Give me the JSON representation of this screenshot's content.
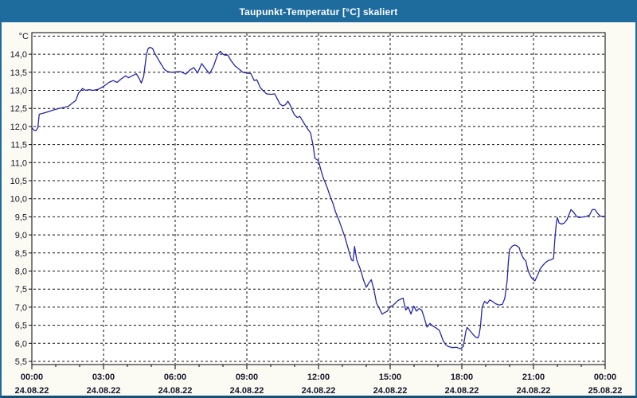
{
  "window": {
    "title": "Taupunkt-Temperatur [°C] skaliert"
  },
  "colors": {
    "titlebar": "#1e6b9d",
    "frame": "#1e6b9d",
    "frame_bottom": "#174e74",
    "background": "#fbfbf3",
    "plot_background": "#ffffff",
    "grid": "#111111",
    "line": "#2626aa",
    "label_text": "#15152a",
    "title_text": "#ffffff"
  },
  "chart_data": {
    "type": "line",
    "title": "Taupunkt-Temperatur [°C] skaliert",
    "xlabel": "",
    "ylabel": "°C",
    "unit_label": "°C",
    "ylim": [
      5.5,
      14.6
    ],
    "xlim_hours": [
      0,
      24
    ],
    "grid": "dashed; horizontal every 0.5 °C, vertical every 3 h",
    "legend": "none",
    "y_ticks": [
      {
        "v": 14.5,
        "label": ""
      },
      {
        "v": 14.0,
        "label": "14,0"
      },
      {
        "v": 13.5,
        "label": "13,5"
      },
      {
        "v": 13.0,
        "label": "13,0"
      },
      {
        "v": 12.5,
        "label": "12,5"
      },
      {
        "v": 12.0,
        "label": "12,0"
      },
      {
        "v": 11.5,
        "label": "11,5"
      },
      {
        "v": 11.0,
        "label": "11,0"
      },
      {
        "v": 10.5,
        "label": "10,5"
      },
      {
        "v": 10.0,
        "label": "10,0"
      },
      {
        "v": 9.5,
        "label": "9,5"
      },
      {
        "v": 9.0,
        "label": "9,0"
      },
      {
        "v": 8.5,
        "label": "8,5"
      },
      {
        "v": 8.0,
        "label": "8,0"
      },
      {
        "v": 7.5,
        "label": "7,5"
      },
      {
        "v": 7.0,
        "label": "7,0"
      },
      {
        "v": 6.5,
        "label": "6,5"
      },
      {
        "v": 6.0,
        "label": "6,0"
      },
      {
        "v": 5.5,
        "label": "5,5"
      }
    ],
    "x_ticks": [
      {
        "hours": 0,
        "time": "00:00",
        "date": "24.08.22"
      },
      {
        "hours": 3,
        "time": "03:00",
        "date": "24.08.22"
      },
      {
        "hours": 6,
        "time": "06:00",
        "date": "24.08.22"
      },
      {
        "hours": 9,
        "time": "09:00",
        "date": "24.08.22"
      },
      {
        "hours": 12,
        "time": "12:00",
        "date": "24.08.22"
      },
      {
        "hours": 15,
        "time": "15:00",
        "date": "24.08.22"
      },
      {
        "hours": 18,
        "time": "18:00",
        "date": "24.08.22"
      },
      {
        "hours": 21,
        "time": "21:00",
        "date": "24.08.22"
      },
      {
        "hours": 24,
        "time": "00:00",
        "date": "25.08.22"
      }
    ],
    "series": [
      {
        "name": "Taupunkt-Temperatur",
        "color": "#2626aa",
        "points": [
          [
            0.0,
            11.97
          ],
          [
            0.08,
            11.9
          ],
          [
            0.17,
            11.88
          ],
          [
            0.25,
            11.97
          ],
          [
            0.31,
            12.34
          ],
          [
            0.48,
            12.37
          ],
          [
            0.7,
            12.41
          ],
          [
            0.92,
            12.46
          ],
          [
            1.14,
            12.5
          ],
          [
            1.37,
            12.53
          ],
          [
            1.53,
            12.56
          ],
          [
            1.7,
            12.65
          ],
          [
            1.84,
            12.72
          ],
          [
            1.95,
            12.92
          ],
          [
            2.12,
            13.05
          ],
          [
            2.25,
            13.0
          ],
          [
            2.4,
            13.02
          ],
          [
            2.56,
            13.0
          ],
          [
            2.79,
            13.03
          ],
          [
            3.0,
            13.11
          ],
          [
            3.23,
            13.22
          ],
          [
            3.4,
            13.27
          ],
          [
            3.57,
            13.22
          ],
          [
            3.73,
            13.31
          ],
          [
            3.92,
            13.4
          ],
          [
            4.05,
            13.35
          ],
          [
            4.2,
            13.4
          ],
          [
            4.37,
            13.46
          ],
          [
            4.5,
            13.32
          ],
          [
            4.58,
            13.2
          ],
          [
            4.68,
            13.38
          ],
          [
            4.8,
            14.0
          ],
          [
            4.87,
            14.16
          ],
          [
            4.95,
            14.19
          ],
          [
            5.05,
            14.16
          ],
          [
            5.15,
            14.02
          ],
          [
            5.35,
            13.79
          ],
          [
            5.55,
            13.58
          ],
          [
            5.68,
            13.52
          ],
          [
            5.85,
            13.5
          ],
          [
            6.02,
            13.51
          ],
          [
            6.22,
            13.52
          ],
          [
            6.45,
            13.45
          ],
          [
            6.61,
            13.56
          ],
          [
            6.78,
            13.63
          ],
          [
            6.94,
            13.48
          ],
          [
            7.11,
            13.74
          ],
          [
            7.28,
            13.59
          ],
          [
            7.44,
            13.46
          ],
          [
            7.61,
            13.67
          ],
          [
            7.78,
            14.0
          ],
          [
            7.89,
            14.08
          ],
          [
            8.0,
            14.0
          ],
          [
            8.11,
            13.97
          ],
          [
            8.2,
            13.98
          ],
          [
            8.33,
            13.83
          ],
          [
            8.5,
            13.68
          ],
          [
            8.67,
            13.59
          ],
          [
            8.83,
            13.5
          ],
          [
            9.0,
            13.48
          ],
          [
            9.17,
            13.46
          ],
          [
            9.31,
            13.27
          ],
          [
            9.42,
            13.29
          ],
          [
            9.56,
            13.08
          ],
          [
            9.67,
            13.0
          ],
          [
            9.83,
            12.9
          ],
          [
            10.0,
            12.89
          ],
          [
            10.17,
            12.9
          ],
          [
            10.28,
            12.76
          ],
          [
            10.39,
            12.62
          ],
          [
            10.5,
            12.57
          ],
          [
            10.61,
            12.6
          ],
          [
            10.72,
            12.7
          ],
          [
            10.83,
            12.57
          ],
          [
            10.91,
            12.43
          ],
          [
            11.0,
            12.32
          ],
          [
            11.11,
            12.25
          ],
          [
            11.22,
            12.28
          ],
          [
            11.33,
            12.16
          ],
          [
            11.44,
            12.04
          ],
          [
            11.56,
            11.92
          ],
          [
            11.67,
            11.82
          ],
          [
            11.78,
            11.45
          ],
          [
            11.85,
            11.12
          ],
          [
            12.0,
            11.05
          ],
          [
            12.1,
            10.8
          ],
          [
            12.2,
            10.58
          ],
          [
            12.37,
            10.3
          ],
          [
            12.48,
            10.08
          ],
          [
            12.6,
            9.88
          ],
          [
            12.71,
            9.64
          ],
          [
            12.87,
            9.38
          ],
          [
            13.1,
            8.95
          ],
          [
            13.26,
            8.58
          ],
          [
            13.38,
            8.31
          ],
          [
            13.45,
            8.28
          ],
          [
            13.51,
            8.68
          ],
          [
            13.6,
            8.31
          ],
          [
            13.77,
            8.02
          ],
          [
            13.88,
            7.76
          ],
          [
            14.0,
            7.55
          ],
          [
            14.1,
            7.66
          ],
          [
            14.21,
            7.76
          ],
          [
            14.32,
            7.48
          ],
          [
            14.43,
            7.11
          ],
          [
            14.55,
            6.96
          ],
          [
            14.66,
            6.81
          ],
          [
            14.77,
            6.85
          ],
          [
            14.88,
            6.89
          ],
          [
            15.0,
            7.02
          ],
          [
            15.1,
            7.04
          ],
          [
            15.21,
            7.11
          ],
          [
            15.32,
            7.18
          ],
          [
            15.43,
            7.22
          ],
          [
            15.54,
            7.25
          ],
          [
            15.65,
            6.92
          ],
          [
            15.76,
            7.0
          ],
          [
            15.87,
            6.81
          ],
          [
            15.99,
            7.03
          ],
          [
            16.1,
            6.89
          ],
          [
            16.21,
            6.96
          ],
          [
            16.32,
            6.92
          ],
          [
            16.43,
            6.7
          ],
          [
            16.54,
            6.45
          ],
          [
            16.67,
            6.55
          ],
          [
            16.78,
            6.48
          ],
          [
            16.89,
            6.44
          ],
          [
            17.06,
            6.36
          ],
          [
            17.22,
            6.07
          ],
          [
            17.33,
            5.96
          ],
          [
            17.44,
            5.91
          ],
          [
            17.61,
            5.88
          ],
          [
            17.78,
            5.89
          ],
          [
            17.94,
            5.85
          ],
          [
            18.06,
            5.91
          ],
          [
            18.17,
            6.33
          ],
          [
            18.22,
            6.44
          ],
          [
            18.33,
            6.36
          ],
          [
            18.45,
            6.26
          ],
          [
            18.56,
            6.18
          ],
          [
            18.67,
            6.15
          ],
          [
            18.72,
            6.22
          ],
          [
            18.78,
            6.47
          ],
          [
            18.85,
            7.0
          ],
          [
            18.95,
            7.16
          ],
          [
            19.06,
            7.1
          ],
          [
            19.17,
            7.2
          ],
          [
            19.28,
            7.16
          ],
          [
            19.4,
            7.1
          ],
          [
            19.55,
            7.06
          ],
          [
            19.7,
            7.08
          ],
          [
            19.8,
            7.25
          ],
          [
            19.9,
            7.75
          ],
          [
            19.95,
            8.27
          ],
          [
            20.0,
            8.6
          ],
          [
            20.1,
            8.68
          ],
          [
            20.2,
            8.72
          ],
          [
            20.3,
            8.7
          ],
          [
            20.4,
            8.65
          ],
          [
            20.46,
            8.52
          ],
          [
            20.52,
            8.43
          ],
          [
            20.58,
            8.35
          ],
          [
            20.68,
            8.28
          ],
          [
            20.74,
            8.1
          ],
          [
            20.8,
            7.97
          ],
          [
            20.86,
            7.88
          ],
          [
            20.92,
            7.81
          ],
          [
            21.0,
            7.76
          ],
          [
            21.06,
            7.73
          ],
          [
            21.17,
            7.88
          ],
          [
            21.28,
            8.06
          ],
          [
            21.4,
            8.16
          ],
          [
            21.51,
            8.24
          ],
          [
            21.62,
            8.29
          ],
          [
            21.73,
            8.31
          ],
          [
            21.84,
            8.35
          ],
          [
            21.9,
            8.93
          ],
          [
            21.96,
            9.35
          ],
          [
            22.0,
            9.48
          ],
          [
            22.07,
            9.33
          ],
          [
            22.18,
            9.3
          ],
          [
            22.29,
            9.33
          ],
          [
            22.4,
            9.42
          ],
          [
            22.51,
            9.6
          ],
          [
            22.57,
            9.7
          ],
          [
            22.68,
            9.63
          ],
          [
            22.79,
            9.52
          ],
          [
            22.9,
            9.48
          ],
          [
            23.01,
            9.49
          ],
          [
            23.12,
            9.5
          ],
          [
            23.24,
            9.52
          ],
          [
            23.35,
            9.55
          ],
          [
            23.46,
            9.7
          ],
          [
            23.57,
            9.7
          ],
          [
            23.68,
            9.6
          ],
          [
            23.79,
            9.52
          ],
          [
            23.9,
            9.51
          ],
          [
            24.0,
            9.52
          ]
        ]
      }
    ]
  }
}
